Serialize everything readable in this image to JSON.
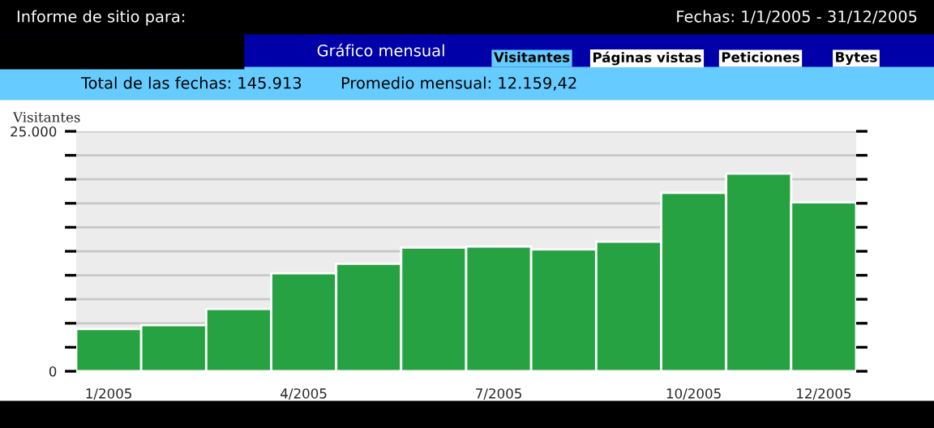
{
  "chart_data": {
    "type": "bar",
    "title": "Gráfico mensual",
    "ylabel": "Visitantes",
    "categories": [
      "1/2005",
      null,
      null,
      "4/2005",
      null,
      null,
      "7/2005",
      null,
      null,
      "10/2005",
      null,
      "12/2005"
    ],
    "values": [
      4400,
      4800,
      6500,
      10200,
      11200,
      12900,
      13000,
      12700,
      13500,
      18600,
      20600,
      17600
    ],
    "color": "#27a243",
    "ylim": [
      0,
      25000
    ],
    "yticks": [
      {
        "value": 0,
        "label": "0"
      },
      {
        "value": 2500,
        "label": null
      },
      {
        "value": 5000,
        "label": null
      },
      {
        "value": 7500,
        "label": null
      },
      {
        "value": 10000,
        "label": null
      },
      {
        "value": 12500,
        "label": null
      },
      {
        "value": 15000,
        "label": null
      },
      {
        "value": 17500,
        "label": null
      },
      {
        "value": 20000,
        "label": null
      },
      {
        "value": 22500,
        "label": null
      },
      {
        "value": 25000,
        "label": "25.000"
      }
    ],
    "grid": "y",
    "annotations": [
      "Informe de sitio para:",
      "Fechas: 1/1/2005 - 31/12/2005",
      "Visitantes",
      "Páginas vistas",
      "Peticiones",
      "Bytes",
      "Total de las fechas: 145.913",
      "Promedio mensual: 12.159,42"
    ]
  }
}
